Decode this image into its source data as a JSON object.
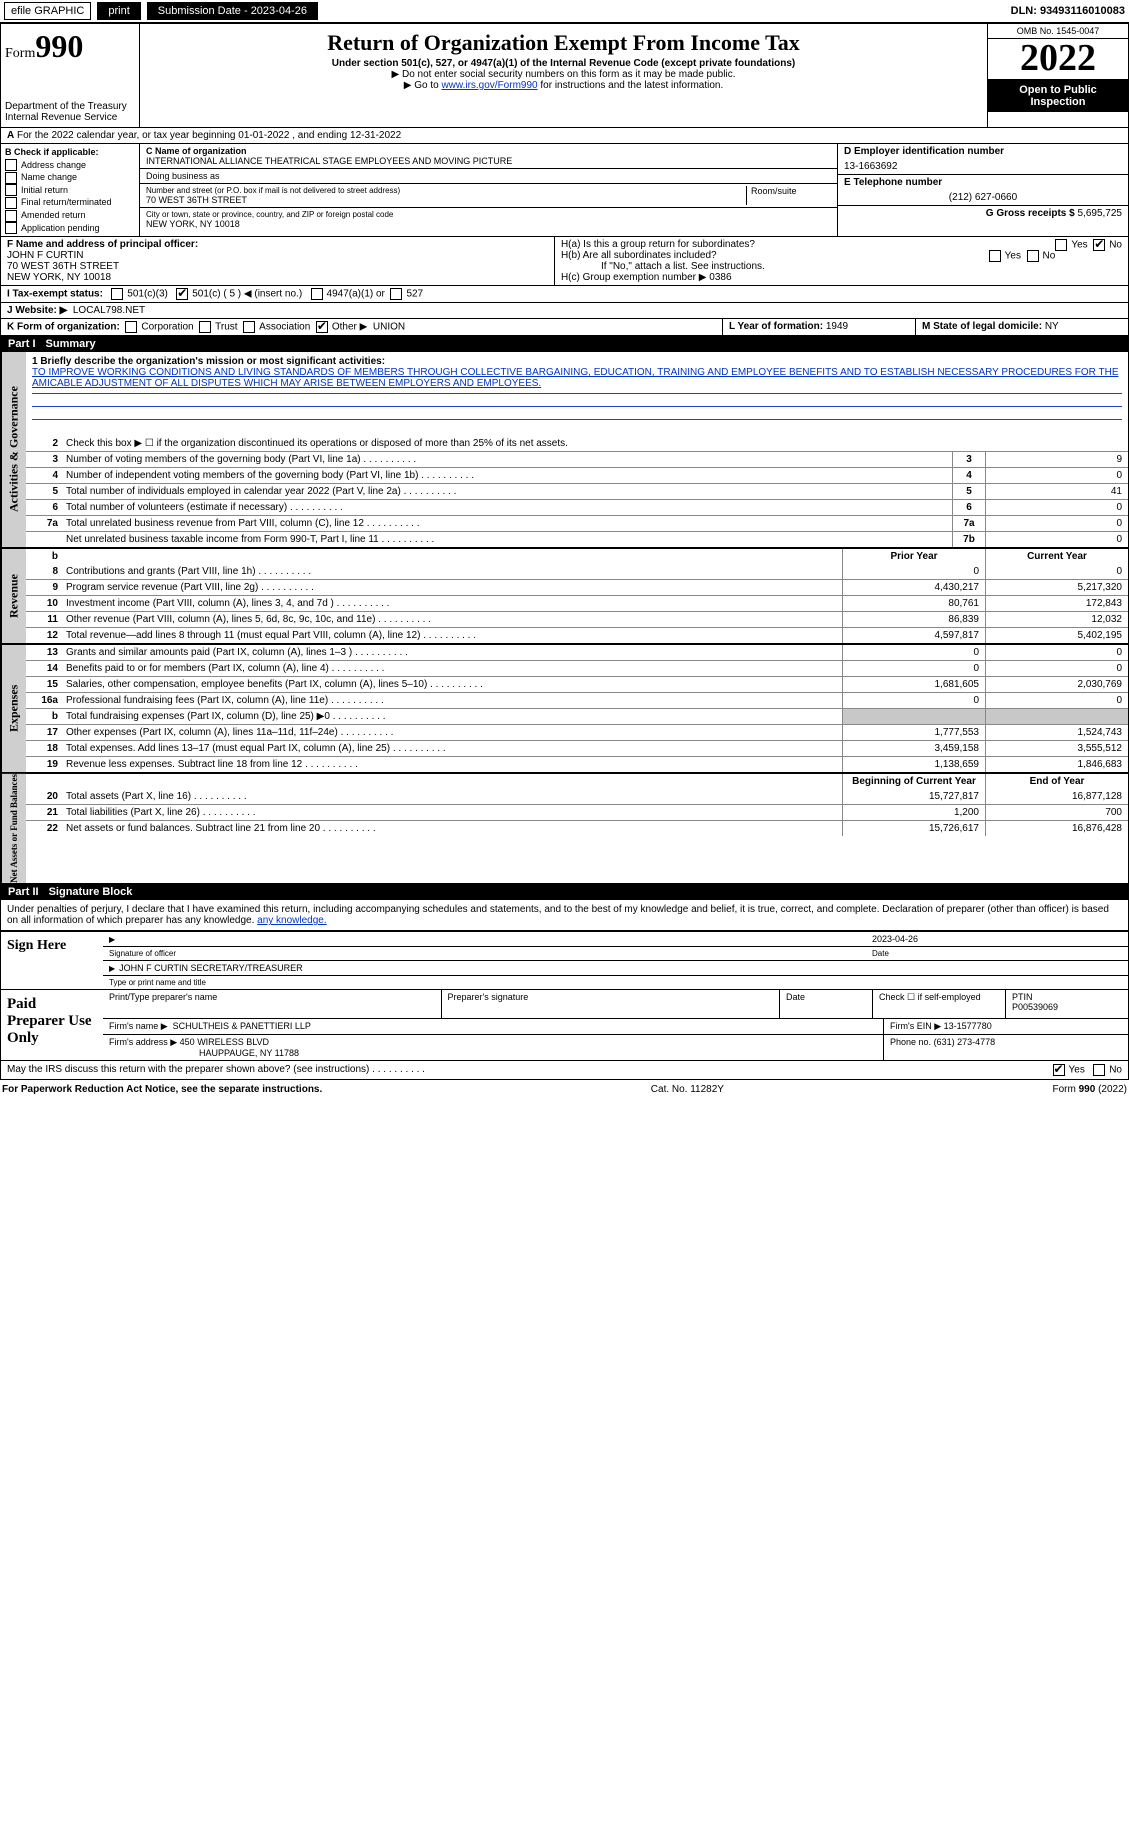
{
  "topbar": {
    "efile": "efile GRAPHIC",
    "print": "print",
    "sub_label": "Submission Date - 2023-04-26",
    "dln": "DLN: 93493116010083"
  },
  "header": {
    "form_label": "Form",
    "form_num": "990",
    "title": "Return of Organization Exempt From Income Tax",
    "subtitle": "Under section 501(c), 527, or 4947(a)(1) of the Internal Revenue Code (except private foundations)",
    "ssn_note": "▶ Do not enter social security numbers on this form as it may be made public.",
    "goto_pre": "▶ Go to ",
    "goto_link": "www.irs.gov/Form990",
    "goto_post": " for instructions and the latest information.",
    "dept": "Department of the Treasury",
    "irs": "Internal Revenue Service",
    "omb": "OMB No. 1545-0047",
    "year": "2022",
    "open": "Open to Public Inspection"
  },
  "a_row": {
    "text": "For the 2022 calendar year, or tax year beginning 01-01-2022    , and ending 12-31-2022",
    "a": "A"
  },
  "b": {
    "title": "B Check if applicable:",
    "opts": [
      "Address change",
      "Name change",
      "Initial return",
      "Final return/terminated",
      "Amended return",
      "Application pending"
    ]
  },
  "c": {
    "label": "C Name of organization",
    "name": "INTERNATIONAL ALLIANCE THEATRICAL STAGE EMPLOYEES AND MOVING PICTURE",
    "dba": "Doing business as",
    "addr_label": "Number and street (or P.O. box if mail is not delivered to street address)",
    "room": "Room/suite",
    "addr": "70 WEST 36TH STREET",
    "city_label": "City or town, state or province, country, and ZIP or foreign postal code",
    "city": "NEW YORK, NY  10018"
  },
  "d": {
    "label": "D Employer identification number",
    "val": "13-1663692"
  },
  "e": {
    "label": "E Telephone number",
    "val": "(212) 627-0660"
  },
  "g": {
    "label": "G Gross receipts $",
    "val": "5,695,725"
  },
  "f": {
    "label": "F  Name and address of principal officer:",
    "name": "JOHN F CURTIN",
    "addr": "70 WEST 36TH STREET",
    "city": "NEW YORK, NY  10018"
  },
  "h": {
    "a": "H(a)  Is this a group return for subordinates?",
    "b": "H(b)  Are all subordinates included?",
    "note": "If \"No,\" attach a list. See instructions.",
    "c": "H(c)  Group exemption number ▶   0386",
    "yes": "Yes",
    "no": "No"
  },
  "i": {
    "label": "I    Tax-exempt status:",
    "c3": "501(c)(3)",
    "c": "501(c) ( 5 ) ◀ (insert no.)",
    "a1": "4947(a)(1) or",
    "s527": "527"
  },
  "j": {
    "label": "J    Website: ▶",
    "val": "LOCAL798.NET"
  },
  "k": {
    "label": "K Form of organization:",
    "opts": [
      "Corporation",
      "Trust",
      "Association"
    ],
    "other": "Other ▶",
    "val": "UNION"
  },
  "l": {
    "label": "L Year of formation:",
    "val": "1949"
  },
  "m": {
    "label": "M State of legal domicile:",
    "val": "NY"
  },
  "part1": {
    "num": "Part I",
    "title": "Summary"
  },
  "mission": {
    "label": "1  Briefly describe the organization's mission or most significant activities:",
    "text": "TO IMPROVE WORKING CONDITIONS AND LIVING STANDARDS OF MEMBERS THROUGH COLLECTIVE BARGAINING, EDUCATION, TRAINING AND EMPLOYEE BENEFITS AND TO ESTABLISH NECESSARY PROCEDURES FOR THE AMICABLE ADJUSTMENT OF ALL DISPUTES WHICH MAY ARISE BETWEEN EMPLOYERS AND EMPLOYEES."
  },
  "sidelabels": {
    "gov": "Activities & Governance",
    "rev": "Revenue",
    "exp": "Expenses",
    "net": "Net Assets or Fund Balances"
  },
  "lines_top": [
    {
      "n": "2",
      "t": "Check this box ▶ ☐  if the organization discontinued its operations or disposed of more than 25% of its net assets."
    },
    {
      "n": "3",
      "t": "Number of voting members of the governing body (Part VI, line 1a)",
      "rn": "3",
      "v": "9"
    },
    {
      "n": "4",
      "t": "Number of independent voting members of the governing body (Part VI, line 1b)",
      "rn": "4",
      "v": "0"
    },
    {
      "n": "5",
      "t": "Total number of individuals employed in calendar year 2022 (Part V, line 2a)",
      "rn": "5",
      "v": "41"
    },
    {
      "n": "6",
      "t": "Total number of volunteers (estimate if necessary)",
      "rn": "6",
      "v": "0"
    },
    {
      "n": "7a",
      "t": "Total unrelated business revenue from Part VIII, column (C), line 12",
      "rn": "7a",
      "v": "0"
    },
    {
      "n": "",
      "t": "Net unrelated business taxable income from Form 990-T, Part I, line 11",
      "rn": "7b",
      "v": "0"
    }
  ],
  "col_headers": {
    "prior": "Prior Year",
    "current": "Current Year",
    "boy": "Beginning of Current Year",
    "eoy": "End of Year"
  },
  "lines_rev": [
    {
      "n": "8",
      "t": "Contributions and grants (Part VIII, line 1h)",
      "p": "0",
      "c": "0"
    },
    {
      "n": "9",
      "t": "Program service revenue (Part VIII, line 2g)",
      "p": "4,430,217",
      "c": "5,217,320"
    },
    {
      "n": "10",
      "t": "Investment income (Part VIII, column (A), lines 3, 4, and 7d )",
      "p": "80,761",
      "c": "172,843"
    },
    {
      "n": "11",
      "t": "Other revenue (Part VIII, column (A), lines 5, 6d, 8c, 9c, 10c, and 11e)",
      "p": "86,839",
      "c": "12,032"
    },
    {
      "n": "12",
      "t": "Total revenue—add lines 8 through 11 (must equal Part VIII, column (A), line 12)",
      "p": "4,597,817",
      "c": "5,402,195"
    }
  ],
  "lines_exp": [
    {
      "n": "13",
      "t": "Grants and similar amounts paid (Part IX, column (A), lines 1–3 )",
      "p": "0",
      "c": "0"
    },
    {
      "n": "14",
      "t": "Benefits paid to or for members (Part IX, column (A), line 4)",
      "p": "0",
      "c": "0"
    },
    {
      "n": "15",
      "t": "Salaries, other compensation, employee benefits (Part IX, column (A), lines 5–10)",
      "p": "1,681,605",
      "c": "2,030,769"
    },
    {
      "n": "16a",
      "t": "Professional fundraising fees (Part IX, column (A), line 11e)",
      "p": "0",
      "c": "0"
    },
    {
      "n": "b",
      "t": "Total fundraising expenses (Part IX, column (D), line 25) ▶0",
      "p": "",
      "c": "",
      "gray": true
    },
    {
      "n": "17",
      "t": "Other expenses (Part IX, column (A), lines 11a–11d, 11f–24e)",
      "p": "1,777,553",
      "c": "1,524,743"
    },
    {
      "n": "18",
      "t": "Total expenses. Add lines 13–17 (must equal Part IX, column (A), line 25)",
      "p": "3,459,158",
      "c": "3,555,512"
    },
    {
      "n": "19",
      "t": "Revenue less expenses. Subtract line 18 from line 12",
      "p": "1,138,659",
      "c": "1,846,683"
    }
  ],
  "lines_net": [
    {
      "n": "20",
      "t": "Total assets (Part X, line 16)",
      "p": "15,727,817",
      "c": "16,877,128"
    },
    {
      "n": "21",
      "t": "Total liabilities (Part X, line 26)",
      "p": "1,200",
      "c": "700"
    },
    {
      "n": "22",
      "t": "Net assets or fund balances. Subtract line 21 from line 20",
      "p": "15,726,617",
      "c": "16,876,428"
    }
  ],
  "part2": {
    "num": "Part II",
    "title": "Signature Block"
  },
  "penal": "Under penalties of perjury, I declare that I have examined this return, including accompanying schedules and statements, and to the best of my knowledge and belief, it is true, correct, and complete. Declaration of preparer (other than officer) is based on all information of which preparer has any knowledge.",
  "sign": {
    "here": "Sign Here",
    "sig": "Signature of officer",
    "date_lbl": "Date",
    "date": "2023-04-26",
    "name": "JOHN F CURTIN  SECRETARY/TREASURER",
    "type": "Type or print name and title"
  },
  "paid": {
    "label": "Paid Preparer Use Only",
    "prep_name_lbl": "Print/Type preparer's name",
    "prep_sig_lbl": "Preparer's signature",
    "date_lbl": "Date",
    "check_lbl": "Check ☐ if self-employed",
    "ptin_lbl": "PTIN",
    "ptin": "P00539069",
    "firm_name_lbl": "Firm's name    ▶",
    "firm_name": "SCHULTHEIS & PANETTIERI LLP",
    "ein_lbl": "Firm's EIN ▶",
    "ein": "13-1577780",
    "firm_addr_lbl": "Firm's address ▶",
    "firm_addr1": "450 WIRELESS BLVD",
    "firm_addr2": "HAUPPAUGE, NY  11788",
    "phone_lbl": "Phone no.",
    "phone": "(631) 273-4778"
  },
  "discuss": {
    "text": "May the IRS discuss this return with the preparer shown above? (see instructions)",
    "yes": "Yes",
    "no": "No"
  },
  "footer": {
    "pra": "For Paperwork Reduction Act Notice, see the separate instructions.",
    "cat": "Cat. No. 11282Y",
    "form": "Form 990 (2022)"
  }
}
